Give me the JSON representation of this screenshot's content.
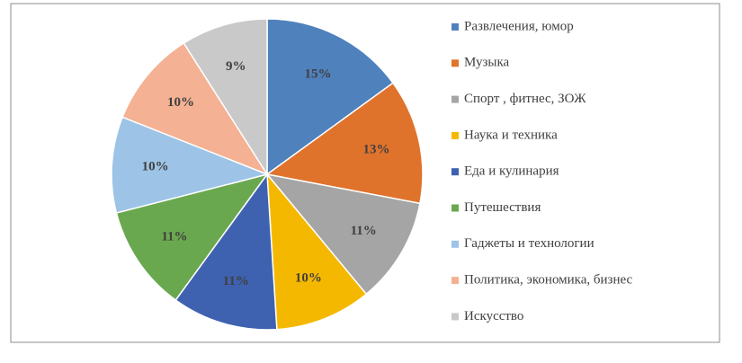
{
  "chart_data": {
    "type": "pie",
    "categories": [
      "Развлечения, юмор",
      "Музыка",
      "Спорт , фитнес, ЗОЖ",
      "Наука и техника",
      "Еда и кулинария",
      "Путешествия",
      "Гаджеты и технологии",
      "Политика, экономика, бизнес",
      "Искусство"
    ],
    "values": [
      15,
      13,
      11,
      10,
      11,
      11,
      10,
      10,
      9
    ],
    "value_labels": [
      "15%",
      "13%",
      "11%",
      "10%",
      "11%",
      "11%",
      "10%",
      "10%",
      "9%"
    ],
    "colors": [
      "#4f81bd",
      "#e0732c",
      "#a5a5a5",
      "#f5b800",
      "#3e61b0",
      "#6aa84f",
      "#9dc3e6",
      "#f4b193",
      "#c9c9c9"
    ],
    "legend": "right"
  }
}
